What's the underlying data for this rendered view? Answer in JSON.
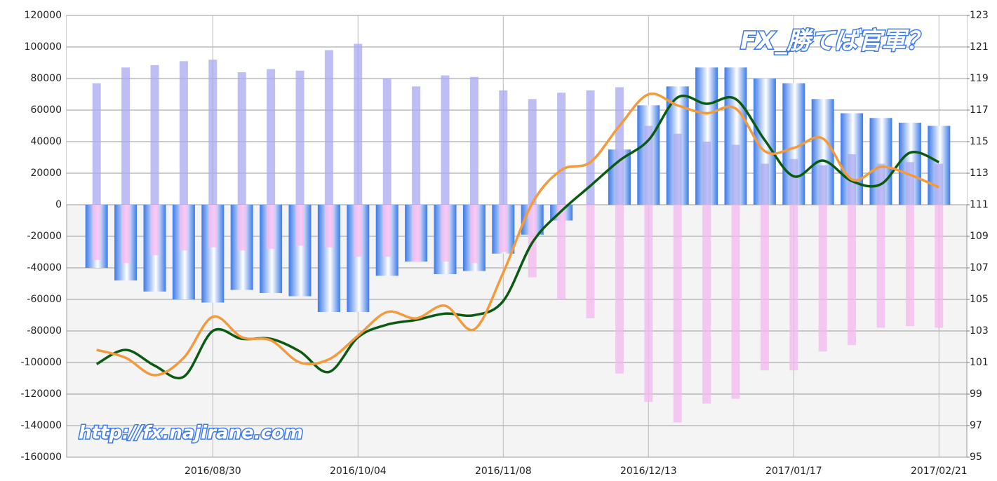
{
  "chart_data": {
    "type": "bar",
    "categories": [
      null,
      null,
      null,
      null,
      "2016/08/30",
      null,
      null,
      null,
      null,
      "2016/10/04",
      null,
      null,
      null,
      null,
      "2016/11/08",
      null,
      null,
      null,
      null,
      "2016/12/13",
      null,
      null,
      null,
      null,
      "2017/01/17",
      null,
      null,
      null,
      null,
      "2017/02/21"
    ],
    "series": [
      {
        "type": "bar",
        "color": "#3d7ae8",
        "values": [
          -40000,
          -48000,
          -55000,
          -60000,
          -62000,
          -54000,
          -56000,
          -58000,
          -68000,
          -68000,
          -45000,
          -36000,
          -44000,
          -42000,
          -31000,
          -19000,
          -10000,
          0,
          35000,
          63000,
          75000,
          87000,
          87000,
          80000,
          77000,
          67000,
          58000,
          55000,
          52000,
          50000
        ]
      },
      {
        "type": "bar",
        "color": "#a8a8f0",
        "values": [
          77000,
          87000,
          88500,
          91000,
          92000,
          84000,
          86000,
          85000,
          98000,
          102000,
          80000,
          75000,
          82000,
          81000,
          72500,
          67000,
          71000,
          72500,
          74500,
          50000,
          45000,
          40000,
          38000,
          26000,
          29000,
          25000,
          32000,
          26000,
          27000,
          26000
        ]
      },
      {
        "type": "bar",
        "color": "#f4b8f0",
        "values": [
          -35000,
          -37000,
          -32000,
          -29000,
          -27000,
          -29000,
          -28000,
          -26000,
          -27000,
          -33000,
          -33000,
          -36000,
          -36000,
          -37000,
          -30000,
          -46000,
          -60000,
          -72000,
          -107000,
          -125000,
          -138000,
          -126000,
          -123000,
          -105000,
          -105000,
          -93000,
          -89000,
          -78000,
          -77000,
          -78000
        ]
      },
      {
        "type": "line",
        "axis": "y2",
        "color": "#0b5a12",
        "values": [
          100.9,
          101.8,
          100.8,
          100.1,
          103.0,
          102.5,
          102.5,
          101.7,
          100.4,
          102.6,
          103.4,
          103.7,
          104.1,
          104.0,
          104.9,
          108.6,
          110.6,
          112.2,
          113.8,
          115.1,
          117.8,
          117.4,
          117.7,
          115.1,
          112.8,
          113.8,
          112.5,
          112.3,
          114.3,
          113.7
        ]
      },
      {
        "type": "line",
        "axis": "y2",
        "color": "#f39a3c",
        "values": [
          101.8,
          101.3,
          100.2,
          101.3,
          103.9,
          102.6,
          102.4,
          101.0,
          101.2,
          102.7,
          104.2,
          103.8,
          104.6,
          103.1,
          106.7,
          111.1,
          113.2,
          113.7,
          116.0,
          118.0,
          117.3,
          116.8,
          117.1,
          114.4,
          114.6,
          115.2,
          112.6,
          113.4,
          112.9,
          112.1
        ]
      }
    ],
    "ylim": [
      -160000,
      120000
    ],
    "yticks": [
      -160000,
      -140000,
      -120000,
      -100000,
      -80000,
      -60000,
      -40000,
      -20000,
      0,
      20000,
      40000,
      60000,
      80000,
      100000,
      120000
    ],
    "y2lim": [
      95,
      123
    ],
    "y2ticks": [
      95,
      97,
      99,
      101,
      103,
      105,
      107,
      109,
      111,
      113,
      115,
      117,
      119,
      121,
      123
    ],
    "grid": true,
    "annotations": [
      "FX_勝てば官軍？",
      "http://fx.najirane.com"
    ]
  }
}
